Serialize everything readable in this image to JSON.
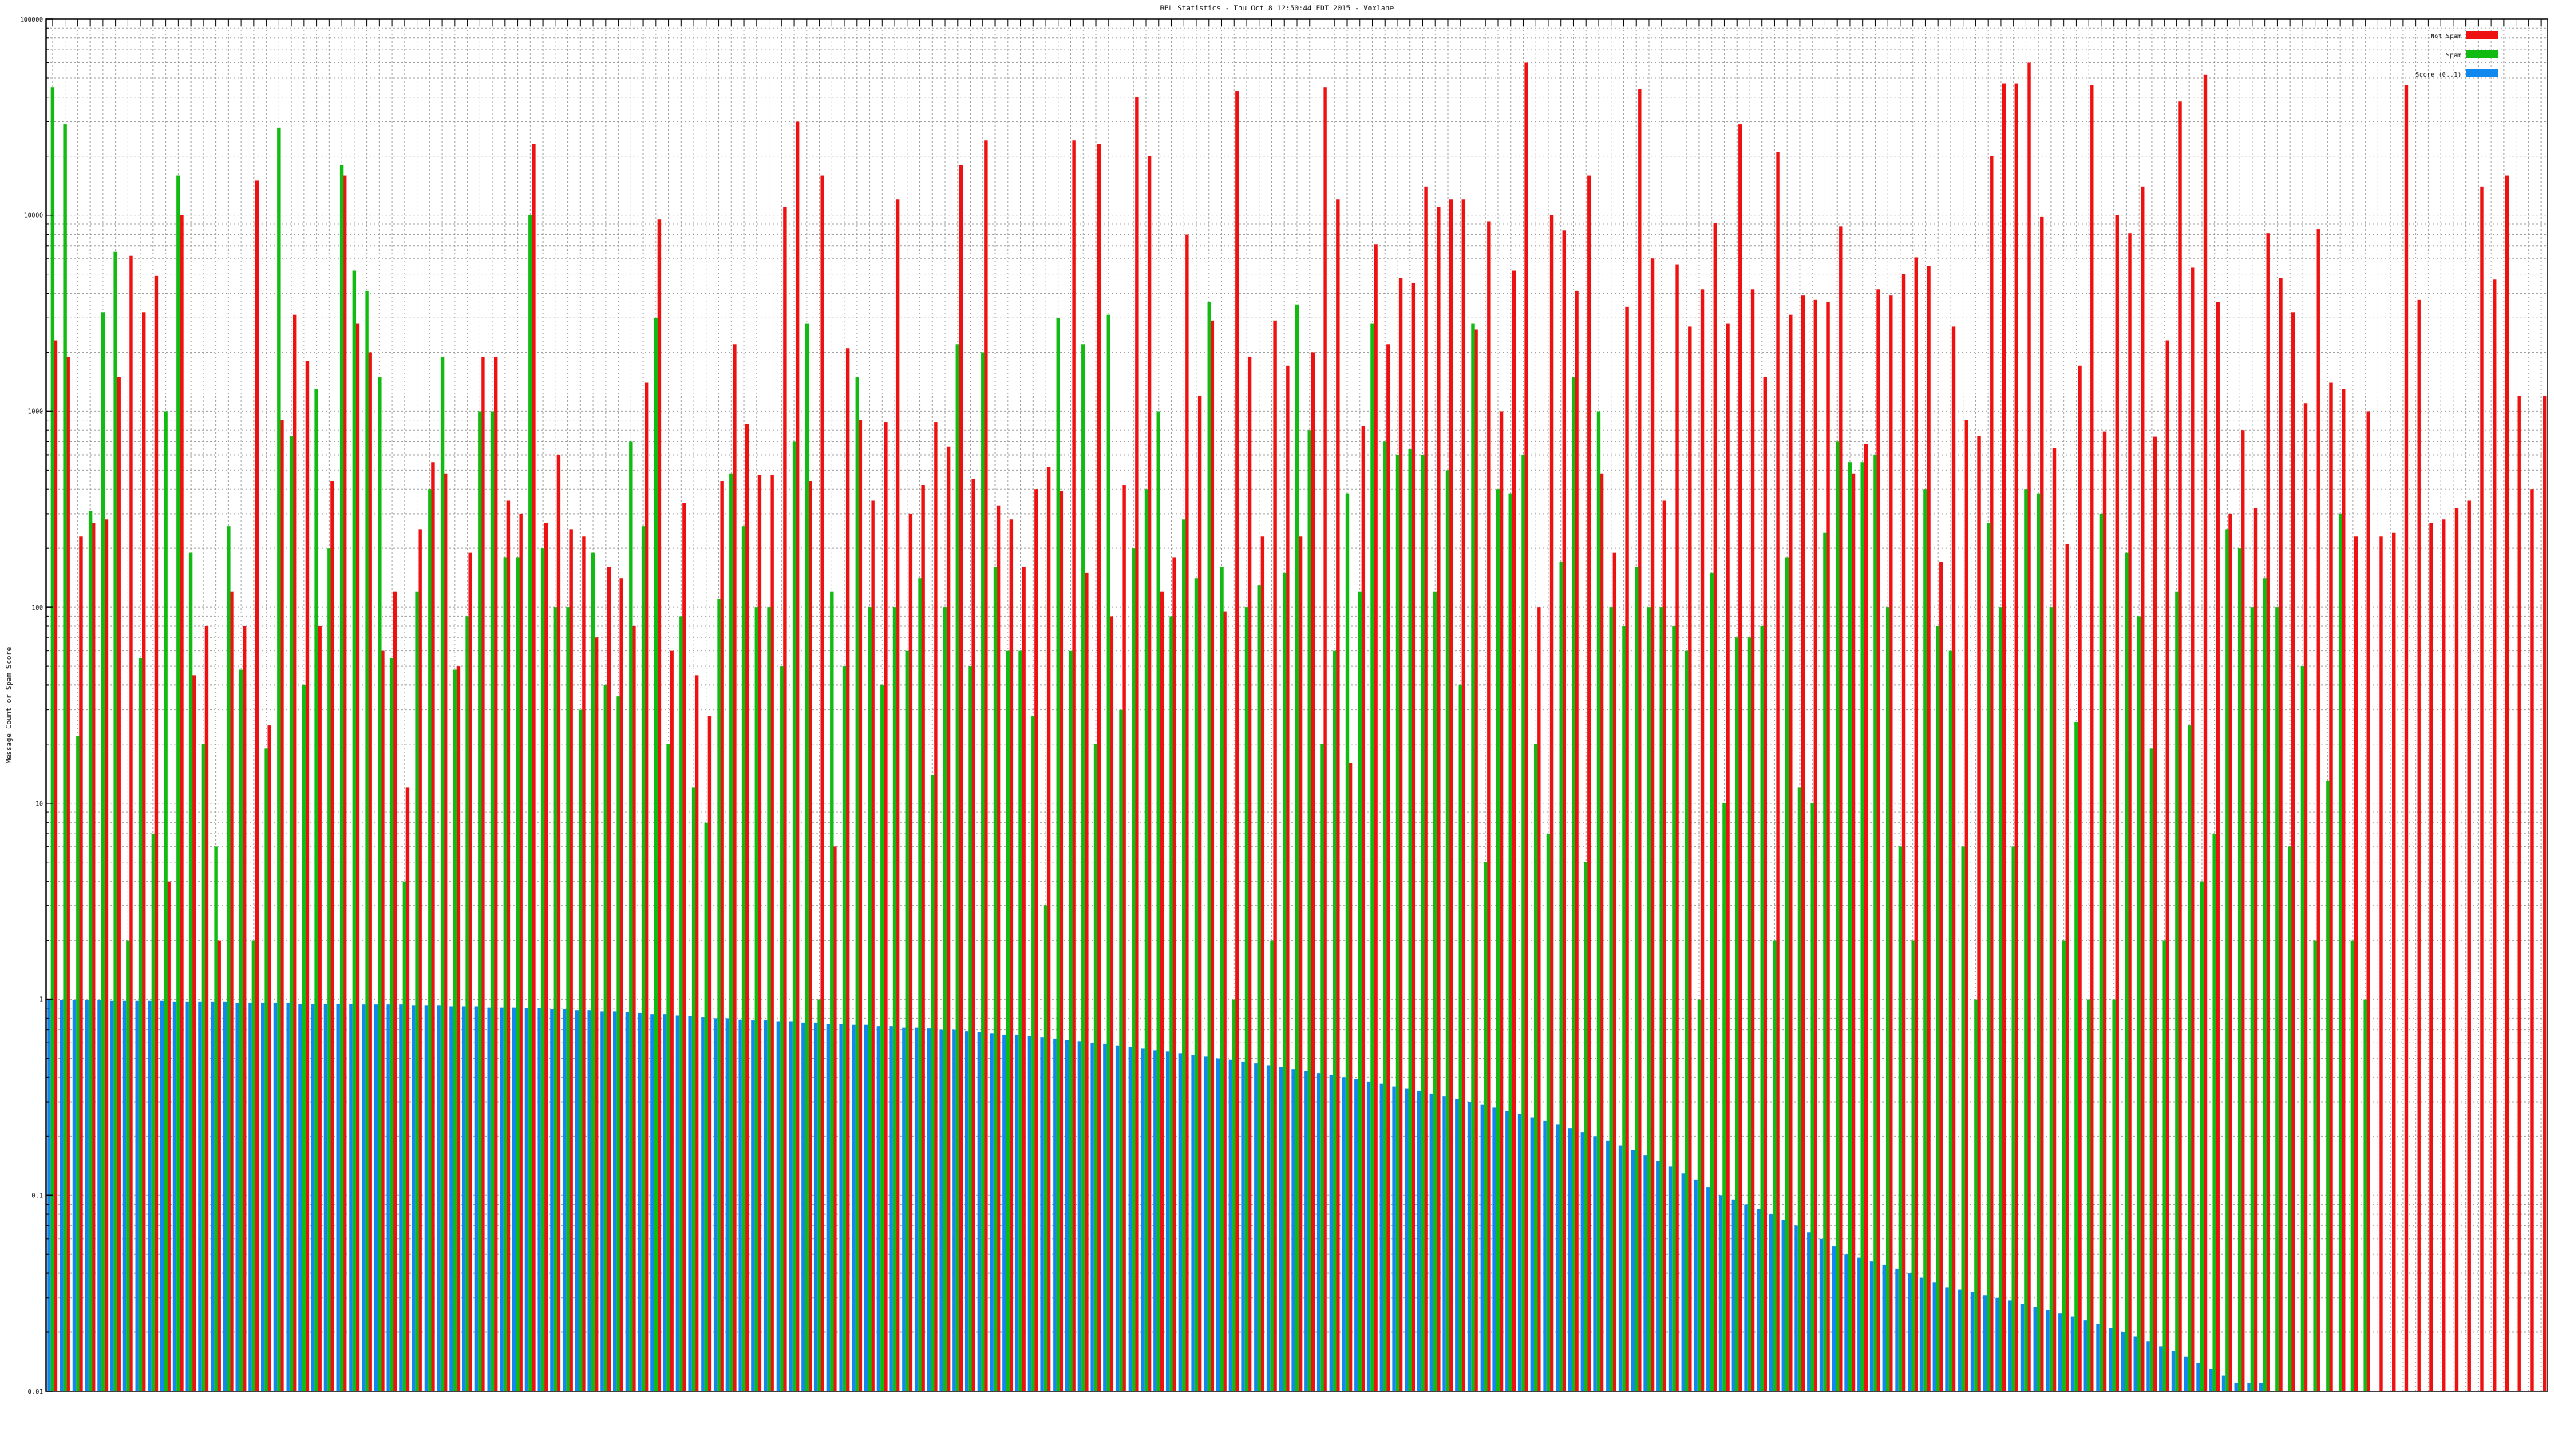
{
  "chart_data": {
    "type": "bar",
    "title": "RBL Statistics - Thu Oct  8 12:50:44 EDT 2015 - Voxlane",
    "ylabel": "Message Count or Spam Score",
    "xlabel": "",
    "y_scale": "log",
    "ylim": [
      0.01,
      100000
    ],
    "y_ticks": [
      "0.01",
      "0.1",
      "1",
      "10",
      "100",
      "1000",
      "10000",
      "100000"
    ],
    "grid": true,
    "legend_position": "top-right",
    "category_labels_legible": false,
    "series": [
      {
        "name": "Not Spam",
        "color": "#ee1111",
        "values": [
          2300,
          1900,
          230,
          270,
          280,
          1500,
          6200,
          3200,
          4900,
          4,
          10000,
          45,
          80,
          2,
          120,
          80,
          15000,
          25,
          900,
          3100,
          1800,
          80,
          440,
          16000,
          2800,
          2000,
          60,
          120,
          12,
          250,
          550,
          480,
          50,
          190,
          1900,
          1900,
          350,
          300,
          23000,
          270,
          600,
          250,
          230,
          70,
          160,
          140,
          80,
          1400,
          9500,
          60,
          340,
          45,
          28,
          440,
          2200,
          860,
          470,
          470,
          11000,
          30000,
          440,
          16000,
          6,
          2100,
          900,
          350,
          880,
          12000,
          300,
          420,
          880,
          660,
          18000,
          450,
          24000,
          330,
          280,
          160,
          400,
          520,
          390,
          24000,
          150,
          23000,
          90,
          420,
          40000,
          20000,
          120,
          180,
          8000,
          1200,
          2900,
          95,
          43000,
          1900,
          230,
          2900,
          1700,
          230,
          2000,
          45000,
          12000,
          16,
          840,
          7100,
          2200,
          4800,
          4500,
          14000,
          11000,
          12000,
          12000,
          2600,
          9300,
          1000,
          5200,
          60000,
          100,
          10000,
          8400,
          4100,
          16000,
          480,
          190,
          3400,
          44000,
          6000,
          350,
          5600,
          2700,
          4200,
          9100,
          2800,
          29000,
          4200,
          1500,
          21000,
          3100,
          3900,
          3700,
          3600,
          8800,
          480,
          680,
          4200,
          3900,
          5000,
          6100,
          5500,
          170,
          2700,
          900,
          750,
          20000,
          47000,
          47000,
          60000,
          9800,
          650,
          210,
          1700,
          46000,
          790,
          10000,
          8100,
          14000,
          740,
          2300,
          38000,
          5400,
          52000,
          3600,
          300,
          800,
          320,
          8100,
          4800,
          3200,
          1100,
          8500,
          1400,
          1300,
          230,
          1000,
          230,
          240,
          46000,
          3700,
          270,
          280,
          320,
          350,
          14000,
          4700,
          16000,
          1200,
          400,
          1200
        ],
        "values_note": "not all bars legible"
      },
      {
        "name": "Spam",
        "color": "#11bb11",
        "values": [
          45000,
          29000,
          22,
          310,
          3200,
          6500,
          2,
          55,
          7,
          1000,
          16000,
          190,
          20,
          6,
          260,
          48,
          2,
          19,
          28000,
          750,
          40,
          1300,
          200,
          18000,
          5200,
          4100,
          1500,
          55,
          4,
          120,
          400,
          1900,
          48,
          90,
          1000,
          1000,
          180,
          180,
          10000,
          200,
          100,
          100,
          30,
          190,
          40,
          35,
          700,
          260,
          3000,
          20,
          90,
          12,
          8,
          110,
          480,
          260,
          100,
          100,
          50,
          700,
          2800,
          1,
          120,
          50,
          1500,
          100,
          40,
          100,
          60,
          140,
          14,
          100,
          2200,
          50,
          2000,
          160,
          60,
          60,
          28,
          3,
          3000,
          60,
          2200,
          20,
          3100,
          30,
          200,
          400,
          1000,
          90,
          280,
          140,
          3600,
          160,
          1,
          100,
          130,
          2,
          150,
          3500,
          800,
          20,
          60,
          380,
          120,
          2800,
          700,
          600,
          640,
          600,
          120,
          500,
          40,
          2800,
          5,
          400,
          380,
          600,
          20,
          7,
          170,
          1500,
          5,
          1000,
          100,
          80,
          160,
          100,
          100,
          80,
          60,
          1,
          150,
          10,
          70,
          70,
          80,
          2,
          180,
          12,
          10,
          240,
          700,
          550,
          550,
          600,
          100,
          6,
          2,
          400,
          80,
          60,
          6,
          1,
          270,
          100,
          6,
          400,
          380,
          100,
          2,
          26,
          1,
          300,
          1,
          190,
          90,
          19,
          2,
          120,
          25,
          4,
          7,
          250,
          200,
          100,
          140,
          100,
          6,
          50,
          2,
          13,
          300,
          2,
          1
        ],
        "values_note": "not all bars legible"
      },
      {
        "name": "Score (0..1)",
        "color": "#1188ee",
        "values": [
          0.99,
          0.99,
          0.99,
          0.99,
          0.99,
          0.98,
          0.98,
          0.98,
          0.98,
          0.98,
          0.97,
          0.97,
          0.97,
          0.97,
          0.97,
          0.96,
          0.96,
          0.96,
          0.96,
          0.96,
          0.95,
          0.95,
          0.95,
          0.95,
          0.95,
          0.94,
          0.94,
          0.94,
          0.94,
          0.93,
          0.93,
          0.93,
          0.92,
          0.92,
          0.92,
          0.91,
          0.91,
          0.91,
          0.9,
          0.9,
          0.89,
          0.89,
          0.88,
          0.88,
          0.87,
          0.87,
          0.86,
          0.85,
          0.84,
          0.84,
          0.83,
          0.82,
          0.81,
          0.8,
          0.8,
          0.79,
          0.78,
          0.78,
          0.77,
          0.77,
          0.76,
          0.76,
          0.75,
          0.75,
          0.74,
          0.74,
          0.73,
          0.73,
          0.72,
          0.72,
          0.71,
          0.7,
          0.7,
          0.69,
          0.68,
          0.67,
          0.66,
          0.66,
          0.65,
          0.64,
          0.63,
          0.62,
          0.61,
          0.6,
          0.59,
          0.58,
          0.57,
          0.56,
          0.55,
          0.54,
          0.53,
          0.52,
          0.51,
          0.5,
          0.49,
          0.48,
          0.47,
          0.46,
          0.45,
          0.44,
          0.43,
          0.42,
          0.41,
          0.4,
          0.39,
          0.38,
          0.37,
          0.36,
          0.35,
          0.34,
          0.33,
          0.32,
          0.31,
          0.3,
          0.29,
          0.28,
          0.27,
          0.26,
          0.25,
          0.24,
          0.23,
          0.22,
          0.21,
          0.2,
          0.19,
          0.18,
          0.17,
          0.16,
          0.15,
          0.14,
          0.13,
          0.12,
          0.11,
          0.1,
          0.095,
          0.09,
          0.085,
          0.08,
          0.075,
          0.07,
          0.065,
          0.06,
          0.055,
          0.05,
          0.048,
          0.046,
          0.044,
          0.042,
          0.04,
          0.038,
          0.036,
          0.034,
          0.033,
          0.032,
          0.031,
          0.03,
          0.029,
          0.028,
          0.027,
          0.026,
          0.025,
          0.024,
          0.023,
          0.022,
          0.021,
          0.02,
          0.019,
          0.018,
          0.017,
          0.016,
          0.015,
          0.014,
          0.013,
          0.012,
          0.011,
          0.011,
          0.011,
          0.01,
          0.01,
          0.01,
          0.01,
          0.01,
          0.01,
          0.01,
          0.01,
          0.01
        ],
        "values_note": "not all bars legible"
      }
    ]
  }
}
